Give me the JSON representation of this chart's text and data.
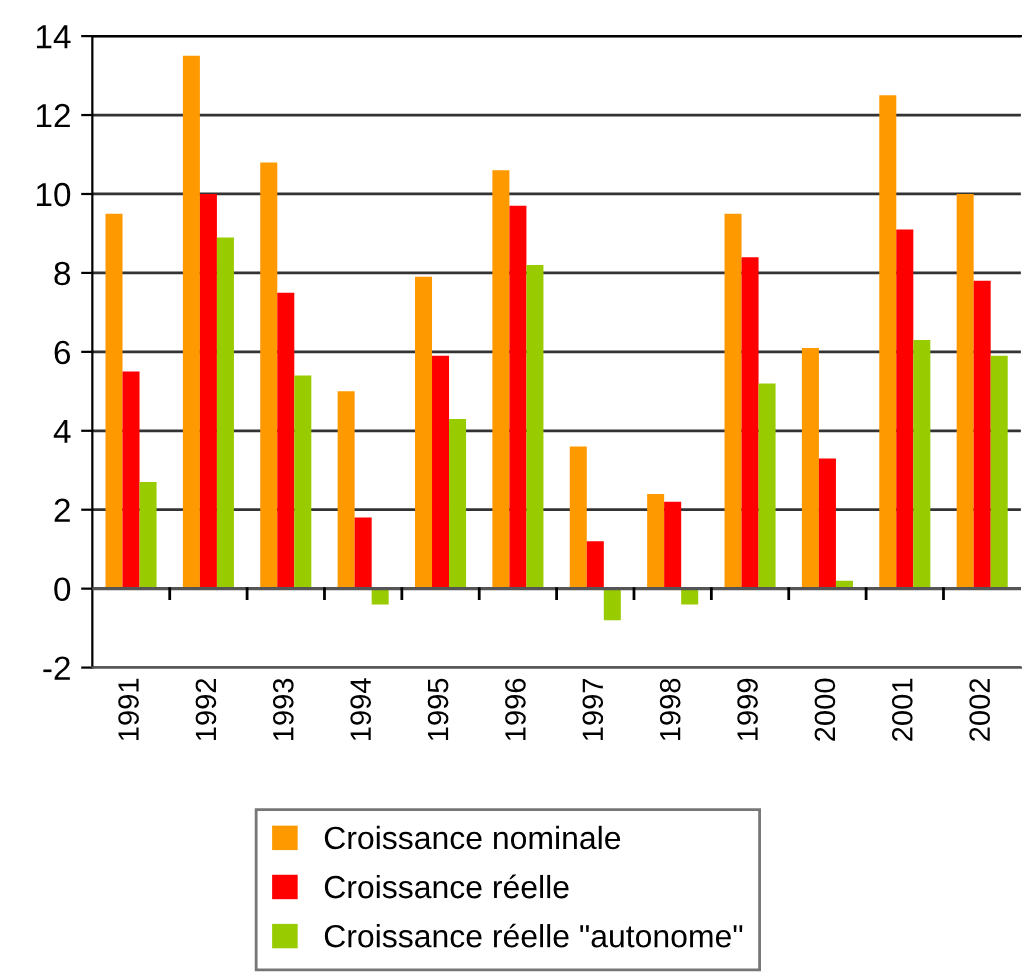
{
  "chart_data": {
    "type": "bar",
    "categories": [
      "1991",
      "1992",
      "1993",
      "1994",
      "1995",
      "1996",
      "1997",
      "1998",
      "1999",
      "2000",
      "2001",
      "2002"
    ],
    "series": [
      {
        "name": "Croissance nominale",
        "color": "#ff9900",
        "values": [
          9.5,
          13.5,
          10.8,
          5.0,
          7.9,
          10.6,
          3.6,
          2.4,
          9.5,
          6.1,
          12.5,
          10.0
        ]
      },
      {
        "name": "Croissance réelle",
        "color": "#ff0000",
        "values": [
          5.5,
          10.0,
          7.5,
          1.8,
          5.9,
          9.7,
          1.2,
          2.2,
          8.4,
          3.3,
          9.1,
          7.8
        ]
      },
      {
        "name": "Croissance réelle \"autonome\"",
        "color": "#99cc00",
        "values": [
          2.7,
          8.9,
          5.4,
          -0.4,
          4.3,
          8.2,
          -0.8,
          -0.4,
          5.2,
          0.2,
          6.3,
          5.9
        ]
      }
    ],
    "ylim": [
      -2,
      14
    ],
    "yticks": [
      -2,
      0,
      2,
      4,
      6,
      8,
      10,
      12,
      14
    ],
    "grid": "y",
    "legend": "bottom"
  }
}
